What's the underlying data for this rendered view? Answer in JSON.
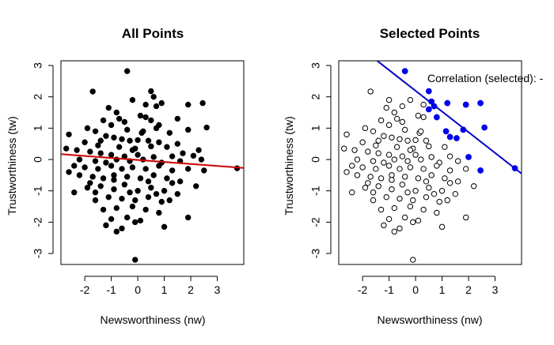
{
  "chart_data": [
    {
      "type": "scatter",
      "title": "All Points",
      "xlabel": "Newsworthiness (nw)",
      "ylabel": "Trustworthiness (tw)",
      "xlim": [
        -2.9,
        4.0
      ],
      "ylim": [
        -3.35,
        3.15
      ],
      "x_ticks": [
        "-2",
        "-1",
        "0",
        "1",
        "2",
        "3"
      ],
      "y_ticks": [
        "-3",
        "-2",
        "-1",
        "0",
        "1",
        "2",
        "3"
      ],
      "point_style": "filled",
      "point_color": "#000000",
      "fit_line": {
        "color": "#cc0000",
        "x": [
          -2.9,
          4.0
        ],
        "y": [
          0.17,
          -0.27
        ]
      },
      "points": [
        [
          -0.4,
          2.82
        ],
        [
          -1.7,
          2.17
        ],
        [
          0.5,
          2.18
        ],
        [
          2.45,
          1.8
        ],
        [
          1.9,
          1.75
        ],
        [
          -1.1,
          1.65
        ],
        [
          0.7,
          1.7
        ],
        [
          -0.8,
          1.5
        ],
        [
          0.1,
          1.4
        ],
        [
          0.3,
          1.35
        ],
        [
          1.5,
          1.3
        ],
        [
          -1.3,
          1.25
        ],
        [
          -0.5,
          1.2
        ],
        [
          0.8,
          1.1
        ],
        [
          -1.9,
          1.0
        ],
        [
          -1.6,
          0.9
        ],
        [
          0.15,
          0.85
        ],
        [
          -2.6,
          0.8
        ],
        [
          1.2,
          0.85
        ],
        [
          1.9,
          0.95
        ],
        [
          2.6,
          1.02
        ],
        [
          -1.2,
          0.75
        ],
        [
          -0.9,
          0.7
        ],
        [
          -0.6,
          0.65
        ],
        [
          -0.3,
          0.6
        ],
        [
          0.0,
          0.62
        ],
        [
          0.4,
          0.6
        ],
        [
          1.5,
          0.5
        ],
        [
          -2.0,
          0.55
        ],
        [
          -1.5,
          0.45
        ],
        [
          -0.7,
          0.4
        ],
        [
          -0.1,
          0.35
        ],
        [
          0.5,
          0.42
        ],
        [
          1.1,
          0.4
        ],
        [
          -2.3,
          0.3
        ],
        [
          -1.8,
          0.25
        ],
        [
          -1.4,
          0.2
        ],
        [
          -1.0,
          0.15
        ],
        [
          -0.5,
          0.1
        ],
        [
          0.0,
          0.15
        ],
        [
          0.6,
          0.08
        ],
        [
          1.3,
          0.1
        ],
        [
          2.1,
          0.12
        ],
        [
          -2.2,
          0.0
        ],
        [
          -1.6,
          -0.05
        ],
        [
          -1.2,
          -0.1
        ],
        [
          -0.8,
          0.0
        ],
        [
          -0.3,
          -0.05
        ],
        [
          0.2,
          0.0
        ],
        [
          0.9,
          -0.1
        ],
        [
          1.6,
          -0.05
        ],
        [
          2.4,
          0.0
        ],
        [
          -2.4,
          -0.2
        ],
        [
          -2.0,
          -0.25
        ],
        [
          -1.5,
          -0.3
        ],
        [
          -1.0,
          -0.2
        ],
        [
          -0.6,
          -0.3
        ],
        [
          -0.2,
          -0.25
        ],
        [
          0.3,
          -0.3
        ],
        [
          0.8,
          -0.2
        ],
        [
          1.3,
          -0.35
        ],
        [
          1.9,
          -0.3
        ],
        [
          2.5,
          -0.35
        ],
        [
          3.75,
          -0.28
        ],
        [
          -2.2,
          -0.5
        ],
        [
          -1.7,
          -0.55
        ],
        [
          -1.3,
          -0.6
        ],
        [
          -0.9,
          -0.5
        ],
        [
          -0.4,
          -0.55
        ],
        [
          0.1,
          -0.6
        ],
        [
          0.6,
          -0.5
        ],
        [
          1.1,
          -0.6
        ],
        [
          1.6,
          -0.7
        ],
        [
          -2.4,
          -1.05
        ],
        [
          -1.9,
          -0.9
        ],
        [
          -1.4,
          -0.85
        ],
        [
          -0.9,
          -0.95
        ],
        [
          -0.5,
          -0.8
        ],
        [
          0.0,
          -1.0
        ],
        [
          0.5,
          -0.9
        ],
        [
          1.0,
          -1.0
        ],
        [
          1.5,
          -1.1
        ],
        [
          2.2,
          -0.85
        ],
        [
          -1.6,
          -1.3
        ],
        [
          -1.1,
          -1.2
        ],
        [
          -0.6,
          -1.25
        ],
        [
          -0.1,
          -1.3
        ],
        [
          0.4,
          -1.2
        ],
        [
          0.9,
          -1.35
        ],
        [
          -1.3,
          -1.6
        ],
        [
          -0.8,
          -1.55
        ],
        [
          -0.2,
          -1.5
        ],
        [
          0.3,
          -1.6
        ],
        [
          0.8,
          -1.7
        ],
        [
          -1.0,
          -1.9
        ],
        [
          -0.4,
          -1.85
        ],
        [
          0.1,
          -1.95
        ],
        [
          1.9,
          -1.85
        ],
        [
          -1.2,
          -2.1
        ],
        [
          -0.6,
          -2.2
        ],
        [
          -0.1,
          -2.0
        ],
        [
          1.0,
          -2.15
        ],
        [
          -0.8,
          -2.3
        ],
        [
          -0.1,
          -3.2
        ],
        [
          0.6,
          2.0
        ],
        [
          -0.2,
          1.9
        ],
        [
          0.9,
          1.8
        ],
        [
          0.3,
          1.75
        ],
        [
          -1.0,
          1.1
        ],
        [
          0.7,
          1.0
        ],
        [
          -0.4,
          0.95
        ],
        [
          0.2,
          0.9
        ],
        [
          -1.4,
          0.6
        ],
        [
          0.8,
          0.55
        ],
        [
          -0.2,
          0.3
        ],
        [
          1.7,
          0.2
        ],
        [
          -0.9,
          -0.65
        ],
        [
          0.4,
          -0.7
        ],
        [
          1.3,
          -0.75
        ],
        [
          -1.8,
          -0.75
        ],
        [
          -0.3,
          -1.05
        ],
        [
          0.7,
          -1.1
        ],
        [
          1.2,
          -1.3
        ],
        [
          -1.6,
          -1.05
        ],
        [
          -2.6,
          -0.4
        ],
        [
          -2.7,
          0.35
        ],
        [
          2.3,
          0.3
        ],
        [
          -0.7,
          1.3
        ],
        [
          0.5,
          1.25
        ]
      ]
    },
    {
      "type": "scatter",
      "title": "Selected Points",
      "xlabel": "Newsworthiness (nw)",
      "ylabel": "Trustworthiness (tw)",
      "xlim": [
        -2.9,
        4.0
      ],
      "ylim": [
        -3.35,
        3.15
      ],
      "x_ticks": [
        "-2",
        "-1",
        "0",
        "1",
        "2",
        "3"
      ],
      "y_ticks": [
        "-3",
        "-2",
        "-1",
        "0",
        "1",
        "2",
        "3"
      ],
      "annotation": "Correlation (selected): -",
      "unselected_style": "open",
      "selected_color": "#0000ee",
      "fit_line": {
        "color": "#0000cc",
        "x": [
          -1.45,
          4.0
        ],
        "y": [
          3.15,
          -0.45
        ]
      },
      "points": [
        [
          -1.7,
          2.17
        ],
        [
          -1.1,
          1.65
        ],
        [
          -0.8,
          1.5
        ],
        [
          0.1,
          1.4
        ],
        [
          0.3,
          1.35
        ],
        [
          -1.3,
          1.25
        ],
        [
          -0.5,
          1.2
        ],
        [
          -1.9,
          1.0
        ],
        [
          -1.6,
          0.9
        ],
        [
          0.15,
          0.85
        ],
        [
          -2.6,
          0.8
        ],
        [
          -1.2,
          0.75
        ],
        [
          -0.9,
          0.7
        ],
        [
          -0.6,
          0.65
        ],
        [
          -0.3,
          0.6
        ],
        [
          0.0,
          0.62
        ],
        [
          0.4,
          0.6
        ],
        [
          -2.0,
          0.55
        ],
        [
          -1.5,
          0.45
        ],
        [
          -0.7,
          0.4
        ],
        [
          -0.1,
          0.35
        ],
        [
          0.5,
          0.42
        ],
        [
          1.1,
          0.4
        ],
        [
          -2.3,
          0.3
        ],
        [
          -1.8,
          0.25
        ],
        [
          -1.4,
          0.2
        ],
        [
          -1.0,
          0.15
        ],
        [
          -0.5,
          0.1
        ],
        [
          0.0,
          0.15
        ],
        [
          0.6,
          0.08
        ],
        [
          1.3,
          0.1
        ],
        [
          -2.2,
          0.0
        ],
        [
          -1.6,
          -0.05
        ],
        [
          -1.2,
          -0.1
        ],
        [
          -0.8,
          0.0
        ],
        [
          -0.3,
          -0.05
        ],
        [
          0.2,
          0.0
        ],
        [
          0.9,
          -0.1
        ],
        [
          1.6,
          -0.05
        ],
        [
          -2.4,
          -0.2
        ],
        [
          -2.0,
          -0.25
        ],
        [
          -1.5,
          -0.3
        ],
        [
          -1.0,
          -0.2
        ],
        [
          -0.6,
          -0.3
        ],
        [
          -0.2,
          -0.25
        ],
        [
          0.3,
          -0.3
        ],
        [
          0.8,
          -0.2
        ],
        [
          1.3,
          -0.35
        ],
        [
          1.9,
          -0.3
        ],
        [
          -2.2,
          -0.5
        ],
        [
          -1.7,
          -0.55
        ],
        [
          -1.3,
          -0.6
        ],
        [
          -0.9,
          -0.5
        ],
        [
          -0.4,
          -0.55
        ],
        [
          0.1,
          -0.6
        ],
        [
          0.6,
          -0.5
        ],
        [
          1.1,
          -0.6
        ],
        [
          1.6,
          -0.7
        ],
        [
          -2.4,
          -1.05
        ],
        [
          -1.9,
          -0.9
        ],
        [
          -1.4,
          -0.85
        ],
        [
          -0.9,
          -0.95
        ],
        [
          -0.5,
          -0.8
        ],
        [
          0.0,
          -1.0
        ],
        [
          0.5,
          -0.9
        ],
        [
          1.0,
          -1.0
        ],
        [
          1.5,
          -1.1
        ],
        [
          2.2,
          -0.85
        ],
        [
          -1.6,
          -1.3
        ],
        [
          -1.1,
          -1.2
        ],
        [
          -0.6,
          -1.25
        ],
        [
          -0.1,
          -1.3
        ],
        [
          0.4,
          -1.2
        ],
        [
          0.9,
          -1.35
        ],
        [
          -1.3,
          -1.6
        ],
        [
          -0.8,
          -1.55
        ],
        [
          -0.2,
          -1.5
        ],
        [
          0.3,
          -1.6
        ],
        [
          0.8,
          -1.7
        ],
        [
          -1.0,
          -1.9
        ],
        [
          -0.4,
          -1.85
        ],
        [
          0.1,
          -1.95
        ],
        [
          1.9,
          -1.85
        ],
        [
          -1.2,
          -2.1
        ],
        [
          -0.6,
          -2.2
        ],
        [
          -0.1,
          -2.0
        ],
        [
          1.0,
          -2.15
        ],
        [
          -0.8,
          -2.3
        ],
        [
          -0.1,
          -3.2
        ],
        [
          -0.2,
          1.9
        ],
        [
          0.3,
          1.75
        ],
        [
          -1.0,
          1.1
        ],
        [
          -0.4,
          0.95
        ],
        [
          0.2,
          0.9
        ],
        [
          -1.4,
          0.6
        ],
        [
          -0.2,
          0.3
        ],
        [
          -0.9,
          -0.65
        ],
        [
          0.4,
          -0.7
        ],
        [
          1.3,
          -0.75
        ],
        [
          -1.8,
          -0.75
        ],
        [
          -0.3,
          -1.05
        ],
        [
          0.7,
          -1.1
        ],
        [
          1.2,
          -1.3
        ],
        [
          -1.6,
          -1.05
        ],
        [
          -2.6,
          -0.4
        ],
        [
          -2.7,
          0.35
        ],
        [
          -0.7,
          1.3
        ],
        [
          -0.5,
          1.7
        ],
        [
          -1.0,
          1.9
        ]
      ],
      "selected_points": [
        [
          -0.4,
          2.82
        ],
        [
          0.5,
          2.18
        ],
        [
          0.5,
          1.6
        ],
        [
          0.7,
          1.7
        ],
        [
          0.6,
          1.85
        ],
        [
          0.8,
          1.35
        ],
        [
          1.2,
          1.8
        ],
        [
          1.9,
          1.75
        ],
        [
          2.45,
          1.8
        ],
        [
          1.8,
          0.95
        ],
        [
          2.6,
          1.02
        ],
        [
          1.15,
          0.9
        ],
        [
          1.3,
          0.72
        ],
        [
          1.55,
          0.68
        ],
        [
          2.0,
          0.08
        ],
        [
          2.45,
          -0.35
        ],
        [
          3.75,
          -0.28
        ]
      ]
    }
  ]
}
